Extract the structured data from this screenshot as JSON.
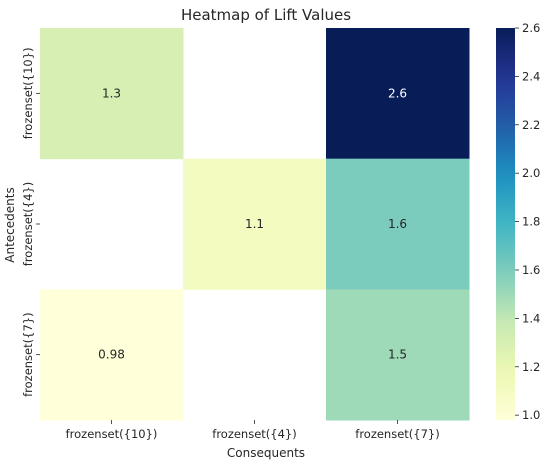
{
  "chart_data": {
    "type": "heatmap",
    "title": "Heatmap of Lift Values",
    "xlabel": "Consequents",
    "ylabel": "Antecedents",
    "x_categories": [
      "frozenset({10})",
      "frozenset({4})",
      "frozenset({7})"
    ],
    "y_categories": [
      "frozenset({10})",
      "frozenset({4})",
      "frozenset({7})"
    ],
    "values": [
      [
        1.3,
        null,
        2.6
      ],
      [
        null,
        1.1,
        1.6
      ],
      [
        0.98,
        null,
        1.5
      ]
    ],
    "colorbar": {
      "colormap": "YlGnBu",
      "min": 0.98,
      "max": 2.6,
      "ticks": [
        "1.0",
        "1.2",
        "1.4",
        "1.6",
        "1.8",
        "2.0",
        "2.2",
        "2.4",
        "2.6"
      ]
    }
  }
}
